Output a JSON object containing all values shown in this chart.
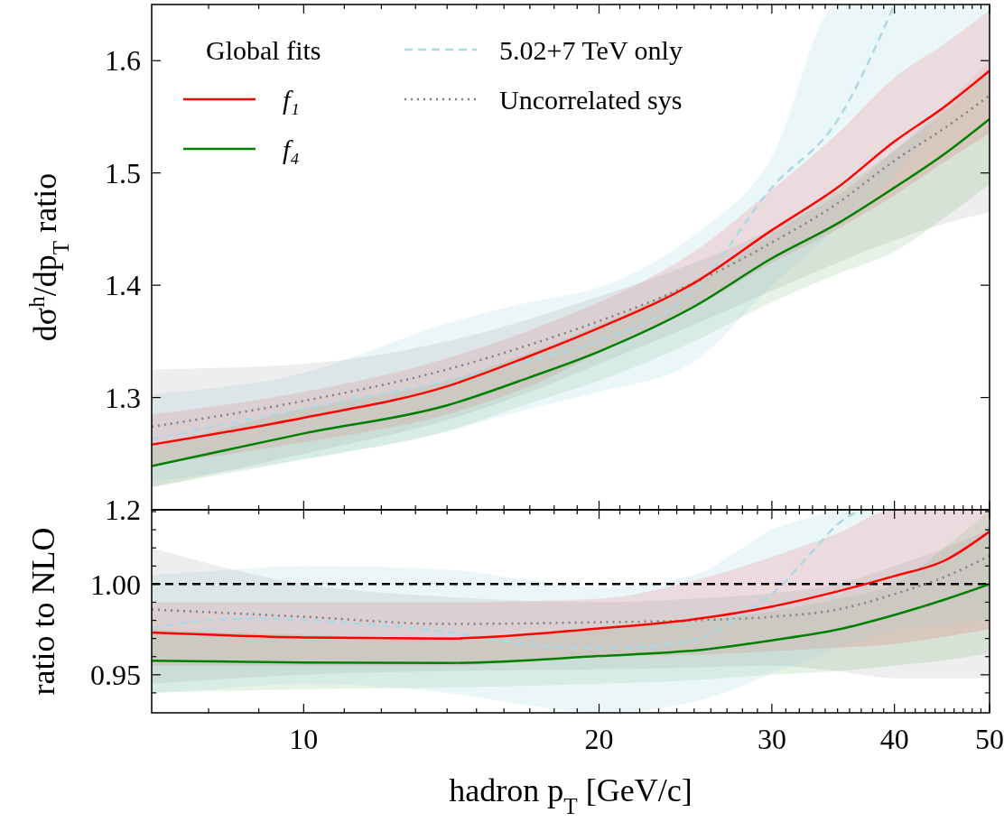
{
  "chart_data": [
    {
      "type": "line",
      "ylabel": "dσ$^{h}$/dp$_{T}$ ratio",
      "legend_title": "Global fits",
      "legend": "top left",
      "tick_labels": "y",
      "log": "x",
      "xlim": [
        7,
        50
      ],
      "ylim": [
        1.2,
        1.65
      ],
      "xticks": [
        {
          "value": 8,
          "label": null
        },
        {
          "value": 9,
          "label": null
        },
        10,
        {
          "value": 11,
          "label": null
        },
        {
          "value": 12,
          "label": null
        },
        {
          "value": 13,
          "label": null
        },
        {
          "value": 14,
          "label": null
        },
        {
          "value": 15,
          "label": null
        },
        {
          "value": 16,
          "label": null
        },
        {
          "value": 17,
          "label": null
        },
        {
          "value": 18,
          "label": null
        },
        {
          "value": 19,
          "label": null
        },
        20,
        {
          "value": 21,
          "label": null
        },
        {
          "value": 22,
          "label": null
        },
        {
          "value": 23,
          "label": null
        },
        {
          "value": 24,
          "label": null
        },
        {
          "value": 25,
          "label": null
        },
        {
          "value": 26,
          "label": null
        },
        {
          "value": 27,
          "label": null
        },
        {
          "value": 28,
          "label": null
        },
        {
          "value": 29,
          "label": null
        },
        30,
        {
          "value": 31,
          "label": null
        },
        {
          "value": 32,
          "label": null
        },
        {
          "value": 33,
          "label": null
        },
        {
          "value": 34,
          "label": null
        },
        {
          "value": 35,
          "label": null
        },
        {
          "value": 36,
          "label": null
        },
        {
          "value": 37,
          "label": null
        },
        {
          "value": 38,
          "label": null
        },
        {
          "value": 39,
          "label": null
        },
        40,
        {
          "value": 41,
          "label": null
        },
        {
          "value": 42,
          "label": null
        },
        {
          "value": 43,
          "label": null
        },
        {
          "value": 44,
          "label": null
        },
        {
          "value": 45,
          "label": null
        },
        {
          "value": 46,
          "label": null
        },
        {
          "value": 47,
          "label": null
        },
        {
          "value": 48,
          "label": null
        },
        {
          "value": 49,
          "label": null
        },
        50
      ],
      "yticks": [
        1.2,
        1.3,
        1.4,
        1.5,
        1.6
      ],
      "series": [
        {
          "name": "f₁",
          "color": "#ff0000",
          "line_style": "solid",
          "x": [
            7,
            10,
            14,
            17,
            20,
            25,
            30,
            35,
            40,
            45,
            50
          ],
          "values": [
            1.258,
            1.282,
            1.31,
            1.337,
            1.362,
            1.402,
            1.449,
            1.487,
            1.528,
            1.559,
            1.591
          ],
          "lower": [
            1.24,
            1.26,
            1.285,
            1.31,
            1.34,
            1.38,
            1.42,
            1.45,
            1.48,
            1.51,
            1.535
          ],
          "upper": [
            1.285,
            1.305,
            1.335,
            1.36,
            1.385,
            1.43,
            1.485,
            1.535,
            1.585,
            1.615,
            1.645
          ]
        },
        {
          "name": "f₄",
          "color": "#008000",
          "line_style": "solid",
          "x": [
            7,
            10,
            14,
            17,
            20,
            25,
            30,
            35,
            40,
            45,
            50
          ],
          "values": [
            1.239,
            1.268,
            1.293,
            1.318,
            1.341,
            1.381,
            1.424,
            1.455,
            1.487,
            1.517,
            1.548
          ],
          "lower": [
            1.22,
            1.245,
            1.27,
            1.295,
            1.315,
            1.35,
            1.385,
            1.41,
            1.43,
            1.46,
            1.49
          ],
          "upper": [
            1.255,
            1.29,
            1.315,
            1.34,
            1.365,
            1.405,
            1.445,
            1.485,
            1.52,
            1.555,
            1.59
          ]
        },
        {
          "name": "5.02+7 TeV only",
          "color": "#add8e6",
          "line_style": "dashed",
          "x": [
            7,
            10,
            14,
            17,
            20,
            25,
            30,
            35,
            40,
            45,
            50
          ],
          "values": [
            1.263,
            1.29,
            1.315,
            1.333,
            1.35,
            1.396,
            1.487,
            1.547,
            1.65,
            null,
            null
          ],
          "lower": [
            1.225,
            1.245,
            1.27,
            1.29,
            1.305,
            1.332,
            1.4,
            1.451,
            1.498,
            1.556,
            1.6
          ],
          "upper": [
            1.303,
            1.322,
            1.366,
            1.385,
            1.398,
            1.445,
            1.514,
            1.65,
            1.65,
            1.65,
            1.65
          ]
        },
        {
          "name": "Uncorrelated sys",
          "color": "#808080",
          "line_style": "dotted",
          "x": [
            7,
            10,
            14,
            17,
            20,
            25,
            30,
            35,
            40,
            45,
            50
          ],
          "values": [
            1.274,
            1.297,
            1.325,
            1.347,
            1.368,
            1.402,
            1.438,
            1.473,
            1.511,
            1.54,
            1.569
          ],
          "lower": [
            1.22,
            1.25,
            1.28,
            1.305,
            1.33,
            1.365,
            1.395,
            1.42,
            1.44,
            1.455,
            1.465
          ],
          "upper": [
            1.325,
            1.33,
            1.35,
            1.37,
            1.39,
            1.42,
            1.45,
            1.48,
            1.52,
            1.56,
            1.6
          ]
        }
      ]
    },
    {
      "type": "line",
      "ylabel": "ratio to NLO",
      "xlabel": "hadron p$_{T}$ [GeV/c]",
      "log": "x",
      "xlim": [
        7,
        50
      ],
      "ylim": [
        0.929,
        1.041
      ],
      "xticks": [
        {
          "value": 8,
          "label": null
        },
        {
          "value": 9,
          "label": null
        },
        10,
        {
          "value": 11,
          "label": null
        },
        {
          "value": 12,
          "label": null
        },
        {
          "value": 13,
          "label": null
        },
        {
          "value": 14,
          "label": null
        },
        {
          "value": 15,
          "label": null
        },
        {
          "value": 16,
          "label": null
        },
        {
          "value": 17,
          "label": null
        },
        {
          "value": 18,
          "label": null
        },
        {
          "value": 19,
          "label": null
        },
        20,
        {
          "value": 21,
          "label": null
        },
        {
          "value": 22,
          "label": null
        },
        {
          "value": 23,
          "label": null
        },
        {
          "value": 24,
          "label": null
        },
        {
          "value": 25,
          "label": null
        },
        {
          "value": 26,
          "label": null
        },
        {
          "value": 27,
          "label": null
        },
        {
          "value": 28,
          "label": null
        },
        {
          "value": 29,
          "label": null
        },
        30,
        {
          "value": 31,
          "label": null
        },
        {
          "value": 32,
          "label": null
        },
        {
          "value": 33,
          "label": null
        },
        {
          "value": 34,
          "label": null
        },
        {
          "value": 35,
          "label": null
        },
        {
          "value": 36,
          "label": null
        },
        {
          "value": 37,
          "label": null
        },
        {
          "value": 38,
          "label": null
        },
        {
          "value": 39,
          "label": null
        },
        40,
        {
          "value": 41,
          "label": null
        },
        {
          "value": 42,
          "label": null
        },
        {
          "value": 43,
          "label": null
        },
        {
          "value": 44,
          "label": null
        },
        {
          "value": 45,
          "label": null
        },
        {
          "value": 46,
          "label": null
        },
        {
          "value": 47,
          "label": null
        },
        {
          "value": 48,
          "label": null
        },
        {
          "value": 49,
          "label": null
        },
        50
      ],
      "yticks": [
        {
          "value": 0.94,
          "label": null
        },
        {
          "value": 0.95,
          "label": "0.95"
        },
        {
          "value": 0.96,
          "label": null
        },
        {
          "value": 0.97,
          "label": null
        },
        {
          "value": 0.98,
          "label": null
        },
        {
          "value": 0.99,
          "label": null
        },
        {
          "value": 1.0,
          "label": "1.00"
        },
        {
          "value": 1.01,
          "label": null
        },
        {
          "value": 1.02,
          "label": null
        },
        {
          "value": 1.03,
          "label": null
        },
        {
          "value": 1.04,
          "label": null
        }
      ],
      "ref_lines": [
        {
          "axis": "y",
          "value": 1.0,
          "color": "#000000",
          "line_style": "dashed"
        }
      ],
      "series": [
        {
          "color": "#ff0000",
          "line_style": "solid",
          "x": [
            7,
            10,
            14,
            20,
            25,
            30,
            35,
            40,
            45,
            50
          ],
          "values": [
            0.9733,
            0.9706,
            0.97,
            0.9756,
            0.9806,
            0.9876,
            0.996,
            1.0045,
            1.013,
            1.029
          ],
          "lower": [
            0.955,
            0.955,
            0.955,
            0.96,
            0.961,
            0.963,
            0.965,
            0.967,
            0.971,
            0.975
          ],
          "upper": [
            0.99,
            0.99,
            0.99,
            0.992,
            1.002,
            1.015,
            1.028,
            1.041,
            1.041,
            1.041
          ]
        },
        {
          "color": "#008000",
          "line_style": "solid",
          "x": [
            7,
            10,
            14,
            20,
            25,
            30,
            35,
            40,
            45,
            50
          ],
          "values": [
            0.9577,
            0.9568,
            0.9565,
            0.9603,
            0.9634,
            0.969,
            0.9749,
            0.983,
            0.9915,
            1.0
          ],
          "lower": [
            0.94,
            0.942,
            0.943,
            0.945,
            0.947,
            0.95,
            0.952,
            0.955,
            0.958,
            0.962
          ],
          "upper": [
            0.975,
            0.972,
            0.97,
            0.975,
            0.98,
            0.985,
            0.992,
            1.0,
            1.02,
            1.041
          ]
        },
        {
          "color": "#add8e6",
          "line_style": "dashed",
          "x": [
            7,
            8,
            9,
            10,
            14,
            17,
            20,
            25,
            28,
            30,
            33,
            35,
            37,
            40,
            45,
            50
          ],
          "values": [
            0.9758,
            0.98,
            0.981,
            0.98,
            0.9736,
            0.9667,
            0.9643,
            0.969,
            0.9836,
            0.9945,
            1.018,
            1.033,
            1.041,
            null,
            null,
            null
          ],
          "lower": [
            0.94,
            0.942,
            0.944,
            0.945,
            0.94,
            0.933,
            0.929,
            0.935,
            0.944,
            0.951,
            0.959,
            0.965,
            0.969,
            0.975,
            0.978,
            0.98
          ],
          "upper": [
            1.005,
            1.007,
            1.009,
            1.01,
            1.008,
            1.002,
            0.998,
            1.005,
            1.02,
            1.03,
            1.037,
            1.041,
            1.041,
            1.041,
            1.041,
            1.041
          ]
        },
        {
          "color": "#808080",
          "line_style": "dotted",
          "x": [
            7,
            10,
            14,
            20,
            25,
            30,
            35,
            40,
            45,
            50
          ],
          "values": [
            0.986,
            0.982,
            0.978,
            0.979,
            0.98,
            0.982,
            0.986,
            0.9945,
            1.004,
            1.0156
          ],
          "lower": [
            0.945,
            0.95,
            0.952,
            0.953,
            0.954,
            0.955,
            0.952,
            0.948,
            0.948,
            0.948
          ],
          "upper": [
            1.02,
            1.0,
            0.993,
            0.99,
            0.992,
            0.995,
            1.0,
            1.01,
            1.02,
            1.03
          ]
        }
      ]
    }
  ]
}
